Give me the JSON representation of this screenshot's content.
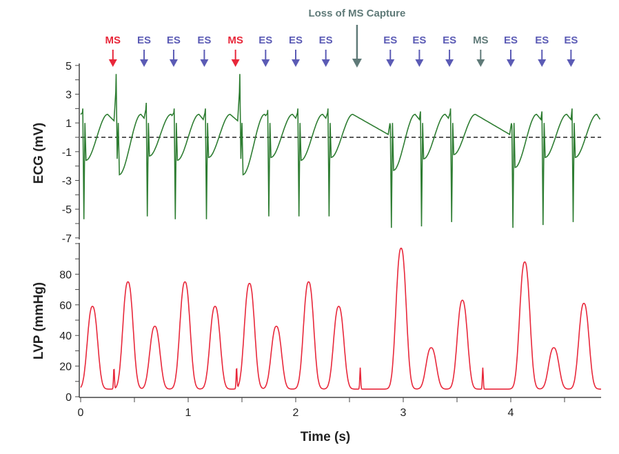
{
  "chart_data": [
    {
      "type": "line",
      "panel": "top",
      "ylabel": "ECG (mV)",
      "xlim": [
        0,
        4.84
      ],
      "ylim": [
        -7,
        5
      ],
      "yticks": [
        5,
        3,
        1,
        -1,
        -3,
        -5,
        -7
      ],
      "reference_line": {
        "y": 0,
        "style": "dashed",
        "color": "#222222"
      },
      "color": "#2e7d32",
      "events": [
        {
          "label": "MS",
          "t": 0.3,
          "color": "#e8273a"
        },
        {
          "label": "ES",
          "t": 0.59,
          "color": "#5b5bb5"
        },
        {
          "label": "ES",
          "t": 0.865,
          "color": "#5b5bb5"
        },
        {
          "label": "ES",
          "t": 1.15,
          "color": "#5b5bb5"
        },
        {
          "label": "MS",
          "t": 1.44,
          "color": "#e8273a"
        },
        {
          "label": "ES",
          "t": 1.72,
          "color": "#5b5bb5"
        },
        {
          "label": "ES",
          "t": 2.0,
          "color": "#5b5bb5"
        },
        {
          "label": "ES",
          "t": 2.28,
          "color": "#5b5bb5"
        },
        {
          "label": "ES",
          "t": 2.88,
          "color": "#5b5bb5"
        },
        {
          "label": "ES",
          "t": 3.15,
          "color": "#5b5bb5"
        },
        {
          "label": "ES",
          "t": 3.43,
          "color": "#5b5bb5"
        },
        {
          "label": "MS",
          "t": 3.72,
          "color": "#5f7a78"
        },
        {
          "label": "ES",
          "t": 4.0,
          "color": "#5b5bb5"
        },
        {
          "label": "ES",
          "t": 4.29,
          "color": "#5b5bb5"
        },
        {
          "label": "ES",
          "t": 4.56,
          "color": "#5b5bb5"
        }
      ],
      "annotation": {
        "text": "Loss of MS Capture",
        "t": 2.57,
        "color": "#5f7a78"
      },
      "beats": [
        {
          "t": 0.02,
          "min": -5.7,
          "max": 2.0,
          "trough": -1.6
        },
        {
          "t": 0.33,
          "min": -1.5,
          "max": 4.4,
          "trough": -2.6
        },
        {
          "t": 0.61,
          "min": -5.5,
          "max": 2.4,
          "trough": -1.3
        },
        {
          "t": 0.87,
          "min": -5.7,
          "max": 2.0,
          "trough": -1.6
        },
        {
          "t": 1.16,
          "min": -5.7,
          "max": 2.0,
          "trough": -1.4
        },
        {
          "t": 1.48,
          "min": -1.5,
          "max": 4.4,
          "trough": -2.6
        },
        {
          "t": 1.74,
          "min": -5.5,
          "max": 1.9,
          "trough": -1.4
        },
        {
          "t": 2.02,
          "min": -5.5,
          "max": 2.0,
          "trough": -1.6
        },
        {
          "t": 2.3,
          "min": -5.5,
          "max": 2.0,
          "trough": -1.4
        },
        {
          "t": 2.88,
          "min": -6.3,
          "max": 0.8,
          "trough": -2.3
        },
        {
          "t": 3.16,
          "min": -6.2,
          "max": 1.8,
          "trough": -1.5
        },
        {
          "t": 3.44,
          "min": -5.9,
          "max": 2.0,
          "trough": -1.2
        },
        {
          "t": 4.01,
          "min": -6.3,
          "max": 0.8,
          "trough": -2.1
        },
        {
          "t": 4.29,
          "min": -6.1,
          "max": 1.8,
          "trough": -1.4
        },
        {
          "t": 4.57,
          "min": -5.9,
          "max": 2.0,
          "trough": -1.4
        }
      ]
    },
    {
      "type": "line",
      "panel": "bottom",
      "ylabel": "LVP (mmHg)",
      "xlabel": "Time (s)",
      "xlim": [
        0,
        4.84
      ],
      "ylim": [
        0,
        100
      ],
      "yticks": [
        0,
        20,
        40,
        60,
        80
      ],
      "xticks": [
        0,
        1,
        2,
        3,
        4
      ],
      "color": "#e8273a",
      "baseline": 5,
      "peaks": [
        {
          "t": 0.11,
          "v": 59
        },
        {
          "t": 0.44,
          "v": 75
        },
        {
          "t": 0.69,
          "v": 46
        },
        {
          "t": 0.97,
          "v": 75
        },
        {
          "t": 1.25,
          "v": 59
        },
        {
          "t": 1.57,
          "v": 74
        },
        {
          "t": 1.82,
          "v": 46
        },
        {
          "t": 2.12,
          "v": 75
        },
        {
          "t": 2.4,
          "v": 59
        },
        {
          "t": 2.98,
          "v": 97
        },
        {
          "t": 3.26,
          "v": 32
        },
        {
          "t": 3.55,
          "v": 63
        },
        {
          "t": 4.13,
          "v": 88
        },
        {
          "t": 4.4,
          "v": 32
        },
        {
          "t": 4.68,
          "v": 61
        }
      ],
      "spikes": [
        {
          "t": 0.31,
          "v": 19
        },
        {
          "t": 1.45,
          "v": 19
        },
        {
          "t": 2.6,
          "v": 19
        },
        {
          "t": 3.74,
          "v": 19
        }
      ]
    }
  ]
}
